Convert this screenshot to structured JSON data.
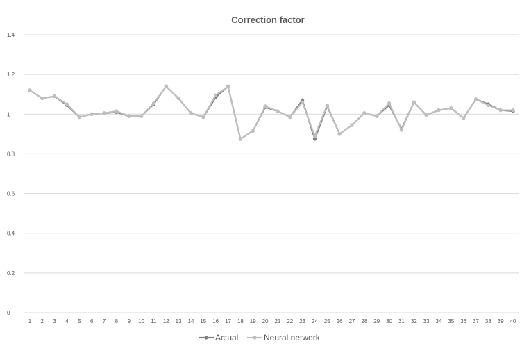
{
  "chart_data": {
    "type": "line",
    "title": "Correction factor",
    "xlabel": "",
    "ylabel": "",
    "ylim": [
      0,
      1.4
    ],
    "yticks": [
      0,
      0.2,
      0.4,
      0.6,
      0.8,
      1,
      1.2,
      1.4
    ],
    "ytick_labels": [
      "0",
      "0.2",
      "0.4",
      "0.6",
      "0.8",
      "1",
      "1.2",
      "1.4"
    ],
    "grid": true,
    "legend_position": "bottom",
    "categories": [
      "1",
      "2",
      "3",
      "4",
      "5",
      "6",
      "7",
      "8",
      "9",
      "10",
      "11",
      "12",
      "13",
      "14",
      "15",
      "16",
      "17",
      "18",
      "19",
      "20",
      "21",
      "22",
      "23",
      "24",
      "25",
      "26",
      "27",
      "28",
      "29",
      "30",
      "31",
      "32",
      "33",
      "34",
      "35",
      "36",
      "37",
      "38",
      "39",
      "40"
    ],
    "series": [
      {
        "name": "Actual",
        "color": "#808080",
        "values": [
          1.12,
          1.08,
          1.09,
          1.045,
          0.985,
          1.0,
          1.005,
          1.01,
          0.99,
          0.99,
          1.05,
          1.14,
          1.08,
          1.005,
          0.985,
          1.085,
          1.14,
          0.875,
          0.915,
          1.035,
          1.015,
          0.985,
          1.07,
          0.875,
          1.04,
          0.9,
          0.945,
          1.005,
          0.99,
          1.045,
          0.925,
          1.06,
          0.995,
          1.02,
          1.03,
          0.98,
          1.075,
          1.05,
          1.02,
          1.015
        ]
      },
      {
        "name": "Neural network",
        "color": "#bfbfbf",
        "values": [
          1.12,
          1.08,
          1.09,
          1.05,
          0.985,
          1.0,
          1.005,
          1.015,
          0.99,
          0.99,
          1.055,
          1.14,
          1.08,
          1.005,
          0.985,
          1.095,
          1.14,
          0.875,
          0.915,
          1.04,
          1.015,
          0.985,
          1.06,
          0.89,
          1.045,
          0.9,
          0.945,
          1.005,
          0.99,
          1.055,
          0.92,
          1.06,
          0.995,
          1.02,
          1.03,
          0.98,
          1.075,
          1.045,
          1.02,
          1.02
        ]
      }
    ]
  }
}
